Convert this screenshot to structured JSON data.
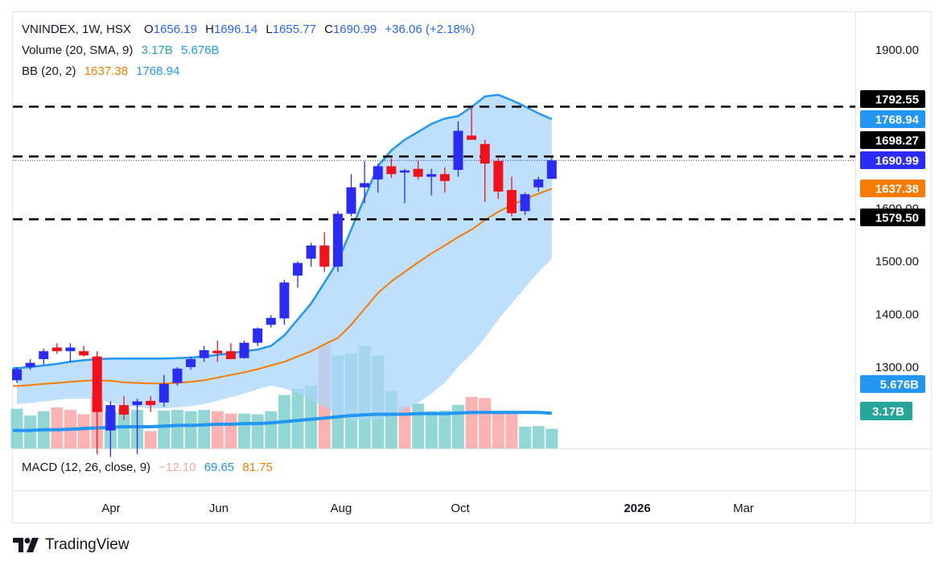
{
  "header": {
    "symbol_line": "VNINDEX, 1W, HSX",
    "o_label": "O",
    "o_val": "1656.19",
    "h_label": "H",
    "h_val": "1696.14",
    "l_label": "L",
    "l_val": "1655.77",
    "c_label": "C",
    "c_val": "1690.99",
    "change": "+36.06 (+2.18%)"
  },
  "volume_legend": {
    "label": "Volume (20, SMA, 9)",
    "v1": "3.17B",
    "v2": "5.676B"
  },
  "bb_legend": {
    "label": "BB (20, 2)",
    "v1": "1637.38",
    "v2": "1768.94"
  },
  "macd_legend": {
    "label": "MACD (12, 26, close, 9)",
    "v1": "−12.10",
    "v2": "69.65",
    "v3": "81.75"
  },
  "brand": "TradingView",
  "colors": {
    "up": "#2b2bf5",
    "down": "#f2111a",
    "bb_fill": "#a9d5fb",
    "bb_line": "#2196f3",
    "basis": "#f57c00",
    "vol_up": "#7fd0cf",
    "vol_down": "#f9a5a5",
    "vol_sma": "#2196f3",
    "label_black": "#000000",
    "label_blue": "#2b2bf5",
    "label_sky": "#2196f3",
    "label_orange": "#f57c00",
    "label_teal": "#26a69a"
  },
  "chart_data": {
    "type": "candlestick",
    "timeframe": "1W",
    "price_axis": {
      "min": 1200,
      "max": 1950,
      "ticks": [
        1300,
        1400,
        1500,
        1600,
        1900
      ],
      "tick_labels": [
        "1300.00",
        "1400.00",
        "1500.00",
        "1600.00",
        "1900.00"
      ]
    },
    "time_axis_labels": [
      "Apr",
      "Jun",
      "Aug",
      "Oct",
      "2026",
      "Mar"
    ],
    "candles": [
      {
        "o": 1275,
        "h": 1300,
        "l": 1270,
        "c": 1296
      },
      {
        "o": 1300,
        "h": 1315,
        "l": 1295,
        "c": 1308
      },
      {
        "o": 1315,
        "h": 1335,
        "l": 1305,
        "c": 1330
      },
      {
        "o": 1337,
        "h": 1345,
        "l": 1325,
        "c": 1330
      },
      {
        "o": 1330,
        "h": 1345,
        "l": 1310,
        "c": 1337
      },
      {
        "o": 1330,
        "h": 1340,
        "l": 1320,
        "c": 1322
      },
      {
        "o": 1320,
        "h": 1330,
        "l": 1135,
        "c": 1215
      },
      {
        "o": 1180,
        "h": 1235,
        "l": 1130,
        "c": 1228
      },
      {
        "o": 1228,
        "h": 1245,
        "l": 1200,
        "c": 1210
      },
      {
        "o": 1228,
        "h": 1240,
        "l": 1135,
        "c": 1235
      },
      {
        "o": 1236,
        "h": 1245,
        "l": 1215,
        "c": 1228
      },
      {
        "o": 1233,
        "h": 1285,
        "l": 1225,
        "c": 1268
      },
      {
        "o": 1270,
        "h": 1300,
        "l": 1265,
        "c": 1297
      },
      {
        "o": 1300,
        "h": 1320,
        "l": 1295,
        "c": 1315
      },
      {
        "o": 1317,
        "h": 1340,
        "l": 1310,
        "c": 1332
      },
      {
        "o": 1331,
        "h": 1350,
        "l": 1310,
        "c": 1326
      },
      {
        "o": 1330,
        "h": 1345,
        "l": 1315,
        "c": 1315
      },
      {
        "o": 1317,
        "h": 1350,
        "l": 1316,
        "c": 1346
      },
      {
        "o": 1346,
        "h": 1375,
        "l": 1340,
        "c": 1373
      },
      {
        "o": 1380,
        "h": 1398,
        "l": 1375,
        "c": 1393
      },
      {
        "o": 1392,
        "h": 1465,
        "l": 1380,
        "c": 1460
      },
      {
        "o": 1473,
        "h": 1500,
        "l": 1450,
        "c": 1497
      },
      {
        "o": 1505,
        "h": 1535,
        "l": 1490,
        "c": 1530
      },
      {
        "o": 1530,
        "h": 1555,
        "l": 1480,
        "c": 1490
      },
      {
        "o": 1490,
        "h": 1595,
        "l": 1480,
        "c": 1590
      },
      {
        "o": 1590,
        "h": 1665,
        "l": 1585,
        "c": 1640
      },
      {
        "o": 1640,
        "h": 1690,
        "l": 1610,
        "c": 1648
      },
      {
        "o": 1655,
        "h": 1685,
        "l": 1630,
        "c": 1680
      },
      {
        "o": 1680,
        "h": 1695,
        "l": 1658,
        "c": 1665
      },
      {
        "o": 1668,
        "h": 1675,
        "l": 1610,
        "c": 1672
      },
      {
        "o": 1675,
        "h": 1690,
        "l": 1655,
        "c": 1660
      },
      {
        "o": 1660,
        "h": 1675,
        "l": 1625,
        "c": 1665
      },
      {
        "o": 1665,
        "h": 1678,
        "l": 1630,
        "c": 1652
      },
      {
        "o": 1673,
        "h": 1765,
        "l": 1660,
        "c": 1747
      },
      {
        "o": 1738,
        "h": 1793,
        "l": 1733,
        "c": 1730
      },
      {
        "o": 1722,
        "h": 1730,
        "l": 1612,
        "c": 1685
      },
      {
        "o": 1690,
        "h": 1695,
        "l": 1618,
        "c": 1632
      },
      {
        "o": 1635,
        "h": 1660,
        "l": 1585,
        "c": 1591
      },
      {
        "o": 1595,
        "h": 1630,
        "l": 1588,
        "c": 1627
      },
      {
        "o": 1640,
        "h": 1660,
        "l": 1632,
        "c": 1655
      },
      {
        "o": 1656.19,
        "h": 1696.14,
        "l": 1655.77,
        "c": 1690.99
      }
    ],
    "bb_upper": [
      1298,
      1300,
      1303,
      1306,
      1310,
      1313,
      1315,
      1316,
      1316,
      1316,
      1316,
      1316,
      1317,
      1318,
      1320,
      1323,
      1326,
      1330,
      1333,
      1340,
      1360,
      1390,
      1420,
      1460,
      1500,
      1560,
      1620,
      1680,
      1710,
      1730,
      1745,
      1760,
      1770,
      1775,
      1792,
      1812,
      1815,
      1805,
      1793,
      1780,
      1768.94
    ],
    "bb_lower": [
      1230,
      1232,
      1235,
      1238,
      1240,
      1240,
      1240,
      1232,
      1227,
      1224,
      1222,
      1222,
      1224,
      1226,
      1230,
      1236,
      1243,
      1250,
      1258,
      1265,
      1260,
      1250,
      1238,
      1225,
      1208,
      1200,
      1200,
      1200,
      1210,
      1220,
      1232,
      1250,
      1270,
      1300,
      1325,
      1355,
      1390,
      1420,
      1450,
      1480,
      1505
    ],
    "bb_basis": [
      1264,
      1266,
      1268,
      1270,
      1272,
      1274,
      1275,
      1274,
      1271,
      1270,
      1269,
      1269,
      1270,
      1272,
      1275,
      1280,
      1285,
      1290,
      1296,
      1303,
      1310,
      1320,
      1330,
      1343,
      1355,
      1380,
      1410,
      1440,
      1462,
      1480,
      1498,
      1515,
      1530,
      1546,
      1560,
      1578,
      1594,
      1606,
      1618,
      1628,
      1637.38
    ],
    "volume": {
      "values": [
        6.4,
        5.3,
        6.0,
        6.6,
        6.2,
        5.5,
        8.8,
        5.9,
        6.5,
        6.2,
        2.8,
        6.1,
        6.2,
        6.0,
        6.2,
        6.0,
        5.6,
        5.6,
        5.5,
        6.0,
        8.6,
        9.6,
        10.1,
        16.6,
        15.0,
        15.3,
        16.5,
        15.0,
        9.3,
        6.8,
        7.2,
        6.0,
        6.1,
        7.0,
        8.3,
        8.1,
        6.0,
        6.0,
        3.5,
        3.6,
        3.17
      ],
      "up": [
        true,
        true,
        true,
        false,
        false,
        false,
        false,
        true,
        true,
        true,
        false,
        true,
        true,
        true,
        true,
        false,
        false,
        true,
        true,
        true,
        true,
        true,
        true,
        false,
        true,
        true,
        true,
        true,
        true,
        false,
        true,
        true,
        true,
        true,
        false,
        false,
        false,
        false,
        true,
        true,
        true
      ],
      "sma": [
        2.9,
        2.9,
        3.0,
        3.0,
        3.1,
        3.2,
        3.3,
        3.4,
        3.5,
        3.5,
        3.5,
        3.6,
        3.7,
        3.7,
        3.8,
        3.9,
        3.9,
        4.0,
        4.0,
        4.1,
        4.3,
        4.5,
        4.7,
        4.9,
        5.1,
        5.3,
        5.4,
        5.5,
        5.5,
        5.5,
        5.6,
        5.6,
        5.6,
        5.7,
        5.8,
        5.8,
        5.8,
        5.8,
        5.8,
        5.8,
        5.676
      ],
      "last_label": "3.17B",
      "sma_label": "5.676B"
    },
    "horizontal_levels": [
      {
        "value": 1792.55,
        "label": "1792.55",
        "style": "dashed"
      },
      {
        "value": 1698.27,
        "label": "1698.27",
        "style": "dashed"
      },
      {
        "value": 1579.5,
        "label": "1579.50",
        "style": "dashed"
      }
    ],
    "price_labels": [
      {
        "value": 1768.94,
        "label": "1768.94",
        "kind": "bb_upper"
      },
      {
        "value": 1690.99,
        "label": "1690.99",
        "kind": "last"
      },
      {
        "value": 1637.38,
        "label": "1637.38",
        "kind": "bb_basis"
      }
    ]
  }
}
